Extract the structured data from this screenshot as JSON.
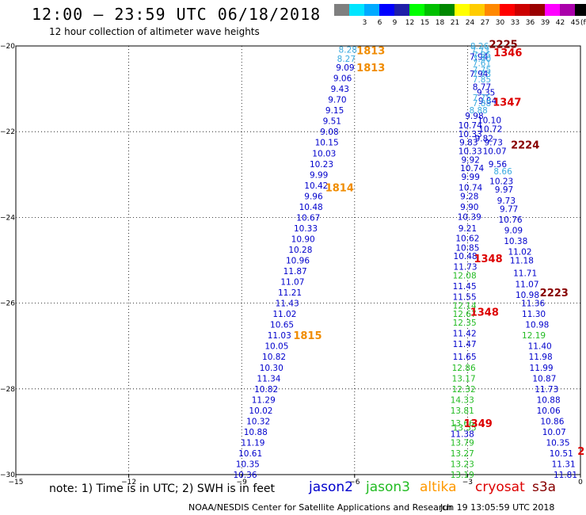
{
  "header": {
    "title": "12:00 – 23:59 UTC 06/18/2018",
    "subtitle": "12 hour collection of altimeter wave heights"
  },
  "color_scale": {
    "unit": "(ft)",
    "bins": [
      {
        "label": "",
        "color": "#7f7f7f"
      },
      {
        "label": "3",
        "color": "#00e5ff"
      },
      {
        "label": "6",
        "color": "#00aaff"
      },
      {
        "label": "9",
        "color": "#0000ff"
      },
      {
        "label": "12",
        "color": "#1f1fa8"
      },
      {
        "label": "15",
        "color": "#00ff00"
      },
      {
        "label": "18",
        "color": "#00c000"
      },
      {
        "label": "21",
        "color": "#008800"
      },
      {
        "label": "24",
        "color": "#ffff00"
      },
      {
        "label": "27",
        "color": "#ffcc00"
      },
      {
        "label": "30",
        "color": "#ff8800"
      },
      {
        "label": "33",
        "color": "#ff0000"
      },
      {
        "label": "36",
        "color": "#cc0000"
      },
      {
        "label": "39",
        "color": "#990000"
      },
      {
        "label": "42",
        "color": "#ff00ff"
      },
      {
        "label": "45",
        "color": "#aa00aa"
      },
      {
        "label": "70",
        "color": "#000000"
      }
    ]
  },
  "chart_data": {
    "type": "scatter",
    "xlim": [
      -15,
      0
    ],
    "ylim": [
      -30,
      -20
    ],
    "x_ticks": [
      -15,
      -12,
      -9,
      -6,
      -3,
      0
    ],
    "x_tick_labels": [
      "−15",
      "−12",
      "−9",
      "−6",
      "−3",
      "0"
    ],
    "y_ticks": [
      -20,
      -22,
      -24,
      -26,
      -28,
      -30
    ],
    "y_tick_labels": [
      "−20",
      "−22",
      "−24",
      "−26",
      "−28",
      "−30"
    ],
    "grid": true,
    "series": [
      {
        "name": "jason2",
        "color": "#0000cc",
        "points": [
          {
            "x": -6.25,
            "y": -20.5,
            "v": "9.09"
          },
          {
            "x": -6.32,
            "y": -20.75,
            "v": "9.06"
          },
          {
            "x": -6.39,
            "y": -21.0,
            "v": "9.43"
          },
          {
            "x": -6.46,
            "y": -21.25,
            "v": "9.70"
          },
          {
            "x": -6.53,
            "y": -21.5,
            "v": "9.15"
          },
          {
            "x": -6.6,
            "y": -21.75,
            "v": "9.51"
          },
          {
            "x": -6.67,
            "y": -22.0,
            "v": "9.08"
          },
          {
            "x": -6.74,
            "y": -22.25,
            "v": "10.15"
          },
          {
            "x": -6.81,
            "y": -22.5,
            "v": "10.03"
          },
          {
            "x": -6.88,
            "y": -22.75,
            "v": "10.23"
          },
          {
            "x": -6.95,
            "y": -23.0,
            "v": "9.99"
          },
          {
            "x": -7.02,
            "y": -23.25,
            "v": "10.42"
          },
          {
            "x": -7.09,
            "y": -23.5,
            "v": "9.96"
          },
          {
            "x": -7.16,
            "y": -23.75,
            "v": "10.48"
          },
          {
            "x": -7.23,
            "y": -24.0,
            "v": "10.67"
          },
          {
            "x": -7.3,
            "y": -24.25,
            "v": "10.33"
          },
          {
            "x": -7.37,
            "y": -24.5,
            "v": "10.90"
          },
          {
            "x": -7.44,
            "y": -24.75,
            "v": "10.28"
          },
          {
            "x": -7.51,
            "y": -25.0,
            "v": "10.96"
          },
          {
            "x": -7.58,
            "y": -25.25,
            "v": "11.87"
          },
          {
            "x": -7.65,
            "y": -25.5,
            "v": "11.07"
          },
          {
            "x": -7.72,
            "y": -25.75,
            "v": "11.21"
          },
          {
            "x": -7.79,
            "y": -26.0,
            "v": "11.43"
          },
          {
            "x": -7.86,
            "y": -26.25,
            "v": "11.02"
          },
          {
            "x": -7.93,
            "y": -26.5,
            "v": "10.65"
          },
          {
            "x": -8.0,
            "y": -26.75,
            "v": "11.03"
          },
          {
            "x": -8.07,
            "y": -27.0,
            "v": "10.05"
          },
          {
            "x": -8.14,
            "y": -27.25,
            "v": "10.82"
          },
          {
            "x": -8.21,
            "y": -27.5,
            "v": "10.30"
          },
          {
            "x": -8.28,
            "y": -27.75,
            "v": "11.34"
          },
          {
            "x": -8.35,
            "y": -28.0,
            "v": "10.82"
          },
          {
            "x": -8.42,
            "y": -28.25,
            "v": "11.29"
          },
          {
            "x": -8.49,
            "y": -28.5,
            "v": "10.02"
          },
          {
            "x": -8.56,
            "y": -28.75,
            "v": "10.32"
          },
          {
            "x": -8.63,
            "y": -29.0,
            "v": "10.88"
          },
          {
            "x": -8.7,
            "y": -29.25,
            "v": "11.19"
          },
          {
            "x": -8.77,
            "y": -29.5,
            "v": "10.61"
          },
          {
            "x": -8.84,
            "y": -29.75,
            "v": "10.35"
          },
          {
            "x": -8.91,
            "y": -30.0,
            "v": "10.36"
          },
          {
            "x": -2.7,
            "y": -20.25,
            "v": "7.94"
          },
          {
            "x": -2.7,
            "y": -20.65,
            "v": "7.94"
          },
          {
            "x": -2.62,
            "y": -20.95,
            "v": "8.77"
          },
          {
            "x": -2.51,
            "y": -21.08,
            "v": "9.35"
          },
          {
            "x": -2.47,
            "y": -21.28,
            "v": "9.84"
          },
          {
            "x": -2.82,
            "y": -21.63,
            "v": "9.98"
          },
          {
            "x": -2.42,
            "y": -21.73,
            "v": "10.10"
          },
          {
            "x": -2.93,
            "y": -21.85,
            "v": "10.74"
          },
          {
            "x": -2.39,
            "y": -21.93,
            "v": "10.72"
          },
          {
            "x": -2.93,
            "y": -22.05,
            "v": "10.33"
          },
          {
            "x": -2.56,
            "y": -22.15,
            "v": "9.82"
          },
          {
            "x": -2.31,
            "y": -22.25,
            "v": "9.73"
          },
          {
            "x": -2.97,
            "y": -22.25,
            "v": "9.83"
          },
          {
            "x": -2.93,
            "y": -22.45,
            "v": "10.33"
          },
          {
            "x": -2.28,
            "y": -22.45,
            "v": "10.07"
          },
          {
            "x": -2.92,
            "y": -22.65,
            "v": "9.92"
          },
          {
            "x": -2.2,
            "y": -22.75,
            "v": "9.56"
          },
          {
            "x": -2.88,
            "y": -22.85,
            "v": "10.74"
          },
          {
            "x": -2.92,
            "y": -23.05,
            "v": "9.99"
          },
          {
            "x": -2.1,
            "y": -23.15,
            "v": "10.23"
          },
          {
            "x": -2.92,
            "y": -23.3,
            "v": "10.74"
          },
          {
            "x": -2.03,
            "y": -23.35,
            "v": "9.97"
          },
          {
            "x": -2.95,
            "y": -23.5,
            "v": "9.28"
          },
          {
            "x": -1.97,
            "y": -23.6,
            "v": "9.73"
          },
          {
            "x": -2.95,
            "y": -23.75,
            "v": "9.90"
          },
          {
            "x": -1.9,
            "y": -23.8,
            "v": "9.77"
          },
          {
            "x": -2.95,
            "y": -23.98,
            "v": "10.39"
          },
          {
            "x": -1.86,
            "y": -24.05,
            "v": "10.76"
          },
          {
            "x": -3.0,
            "y": -24.25,
            "v": "9.21"
          },
          {
            "x": -1.78,
            "y": -24.3,
            "v": "9.09"
          },
          {
            "x": -3.0,
            "y": -24.48,
            "v": "10.62"
          },
          {
            "x": -1.72,
            "y": -24.55,
            "v": "10.38"
          },
          {
            "x": -3.0,
            "y": -24.7,
            "v": "10.85"
          },
          {
            "x": -1.61,
            "y": -24.8,
            "v": "11.02"
          },
          {
            "x": -3.06,
            "y": -24.9,
            "v": "10.48"
          },
          {
            "x": -1.56,
            "y": -25.0,
            "v": "11.18"
          },
          {
            "x": -3.06,
            "y": -25.15,
            "v": "11.73"
          },
          {
            "x": -1.47,
            "y": -25.3,
            "v": "11.71"
          },
          {
            "x": -1.42,
            "y": -25.55,
            "v": "11.07"
          },
          {
            "x": -3.08,
            "y": -25.6,
            "v": "11.45"
          },
          {
            "x": -1.41,
            "y": -25.8,
            "v": "10.98"
          },
          {
            "x": -3.08,
            "y": -25.85,
            "v": "11.55"
          },
          {
            "x": -1.26,
            "y": -26.0,
            "v": "11.36"
          },
          {
            "x": -1.24,
            "y": -26.25,
            "v": "11.30"
          },
          {
            "x": -1.15,
            "y": -26.5,
            "v": "10.98"
          },
          {
            "x": -3.08,
            "y": -26.7,
            "v": "11.42"
          },
          {
            "x": -1.08,
            "y": -27.0,
            "v": "11.40"
          },
          {
            "x": -3.08,
            "y": -26.95,
            "v": "11.47"
          },
          {
            "x": -3.08,
            "y": -27.25,
            "v": "11.65"
          },
          {
            "x": -1.06,
            "y": -27.25,
            "v": "11.98"
          },
          {
            "x": -1.04,
            "y": -27.5,
            "v": "11.99"
          },
          {
            "x": -0.96,
            "y": -27.75,
            "v": "10.87"
          },
          {
            "x": -0.9,
            "y": -28.0,
            "v": "11.73"
          },
          {
            "x": -0.85,
            "y": -28.25,
            "v": "10.88"
          },
          {
            "x": -0.85,
            "y": -28.5,
            "v": "10.06"
          },
          {
            "x": -0.75,
            "y": -28.75,
            "v": "10.86"
          },
          {
            "x": -0.7,
            "y": -29.0,
            "v": "10.07"
          },
          {
            "x": -0.6,
            "y": -29.25,
            "v": "10.35"
          },
          {
            "x": -0.51,
            "y": -29.5,
            "v": "10.51"
          },
          {
            "x": -3.14,
            "y": -29.05,
            "v": "11.38"
          },
          {
            "x": -0.45,
            "y": -29.75,
            "v": "11.31"
          },
          {
            "x": -0.4,
            "y": -30.0,
            "v": "11.81"
          }
        ]
      },
      {
        "name": "jason3",
        "color": "#22bb22",
        "points": [
          {
            "x": -3.08,
            "y": -25.35,
            "v": "12.08"
          },
          {
            "x": -3.08,
            "y": -26.05,
            "v": "12.14"
          },
          {
            "x": -3.08,
            "y": -26.25,
            "v": "12.67"
          },
          {
            "x": -3.08,
            "y": -26.45,
            "v": "12.35"
          },
          {
            "x": -1.24,
            "y": -26.75,
            "v": "12.19"
          },
          {
            "x": -3.1,
            "y": -27.5,
            "v": "12.86"
          },
          {
            "x": -3.1,
            "y": -27.75,
            "v": "13.17"
          },
          {
            "x": -3.1,
            "y": -28.0,
            "v": "12.32"
          },
          {
            "x": -3.14,
            "y": -28.25,
            "v": "14.33"
          },
          {
            "x": -3.14,
            "y": -28.5,
            "v": "13.81"
          },
          {
            "x": -3.14,
            "y": -28.8,
            "v": "13.66"
          },
          {
            "x": -3.14,
            "y": -29.25,
            "v": "13.79"
          },
          {
            "x": -3.14,
            "y": -29.5,
            "v": "13.27"
          },
          {
            "x": -3.14,
            "y": -29.75,
            "v": "13.23"
          },
          {
            "x": -3.14,
            "y": -30.0,
            "v": "13.19"
          },
          {
            "x": -3.08,
            "y": -28.9,
            "v": "13.55"
          }
        ]
      },
      {
        "name": "altika",
        "color": "#3aaae0",
        "points": [
          {
            "x": -6.18,
            "y": -20.08,
            "v": "8.28"
          },
          {
            "x": -6.22,
            "y": -20.3,
            "v": "8.27"
          },
          {
            "x": -2.68,
            "y": -20.0,
            "v": "8.26"
          },
          {
            "x": -2.66,
            "y": -20.1,
            "v": "7.73"
          },
          {
            "x": -2.62,
            "y": -20.2,
            "v": "7.85"
          },
          {
            "x": -2.62,
            "y": -20.3,
            "v": "7.40"
          },
          {
            "x": -2.62,
            "y": -20.4,
            "v": "7.61"
          },
          {
            "x": -2.62,
            "y": -20.55,
            "v": "7.75"
          },
          {
            "x": -2.62,
            "y": -20.65,
            "v": "7.73"
          },
          {
            "x": -2.62,
            "y": -20.78,
            "v": "7.85"
          },
          {
            "x": -2.62,
            "y": -21.2,
            "v": "7.75"
          },
          {
            "x": -2.62,
            "y": -21.33,
            "v": "7.88"
          },
          {
            "x": -2.71,
            "y": -21.5,
            "v": "8.88"
          },
          {
            "x": -2.06,
            "y": -22.92,
            "v": "8.66"
          }
        ]
      },
      {
        "name": "cryosat",
        "color": "#ff8800",
        "points": []
      },
      {
        "name": "s3a",
        "color": "#880000",
        "points": []
      }
    ],
    "pass_labels": [
      {
        "text": "1813",
        "x": -5.95,
        "y": -20.1,
        "color": "#f08c00"
      },
      {
        "text": "1813",
        "x": -5.95,
        "y": -20.5,
        "color": "#f08c00"
      },
      {
        "text": "1814",
        "x": -6.78,
        "y": -23.3,
        "color": "#f08c00"
      },
      {
        "text": "1815",
        "x": -7.63,
        "y": -26.75,
        "color": "#f08c00"
      },
      {
        "text": "2225",
        "x": -2.43,
        "y": -19.95,
        "color": "#880000"
      },
      {
        "text": "1346",
        "x": -2.31,
        "y": -20.15,
        "color": "#dd0000"
      },
      {
        "text": "1347",
        "x": -2.33,
        "y": -21.3,
        "color": "#dd0000"
      },
      {
        "text": "2224",
        "x": -1.85,
        "y": -22.3,
        "color": "#880000"
      },
      {
        "text": "1348",
        "x": -2.83,
        "y": -24.95,
        "color": "#dd0000"
      },
      {
        "text": "2223",
        "x": -1.08,
        "y": -25.75,
        "color": "#880000"
      },
      {
        "text": "1348",
        "x": -2.93,
        "y": -26.2,
        "color": "#dd0000"
      },
      {
        "text": "1349",
        "x": -3.1,
        "y": -28.8,
        "color": "#dd0000"
      },
      {
        "text": "2",
        "x": -0.08,
        "y": -29.45,
        "color": "#dd0000"
      }
    ]
  },
  "note": "note: 1) Time is in UTC; 2) SWH is in feet",
  "satellites": [
    {
      "name": "jason2",
      "color": "#0000cc"
    },
    {
      "name": "jason3",
      "color": "#22bb22"
    },
    {
      "name": "altika",
      "color": "#ff9900"
    },
    {
      "name": "cryosat",
      "color": "#dd0000"
    },
    {
      "name": "s3a",
      "color": "#880000"
    }
  ],
  "footer": {
    "credit": "NOAA/NESDIS Center for Satellite Applications and Research",
    "timestamp": "Jun 19 13:05:59 UTC 2018"
  }
}
